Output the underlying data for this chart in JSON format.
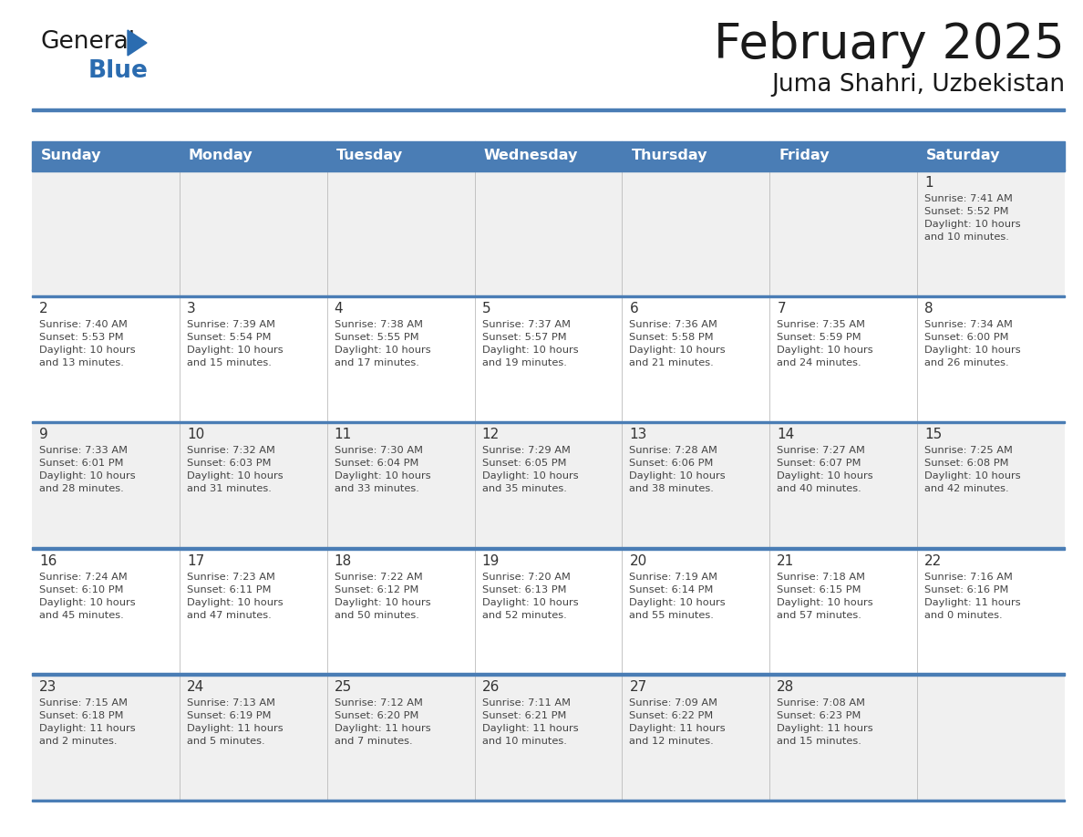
{
  "title": "February 2025",
  "subtitle": "Juma Shahri, Uzbekistan",
  "header_color": "#4a7db5",
  "header_text_color": "#FFFFFF",
  "cell_bg_even": "#f0f0f0",
  "cell_bg_odd": "#ffffff",
  "line_color": "#4a7db5",
  "text_color": "#333333",
  "logo_general_color": "#1a1a1a",
  "logo_blue_color": "#2b6cb0",
  "triangle_color": "#2b6cb0",
  "days_of_week": [
    "Sunday",
    "Monday",
    "Tuesday",
    "Wednesday",
    "Thursday",
    "Friday",
    "Saturday"
  ],
  "weeks": [
    [
      {
        "day": null,
        "info": null
      },
      {
        "day": null,
        "info": null
      },
      {
        "day": null,
        "info": null
      },
      {
        "day": null,
        "info": null
      },
      {
        "day": null,
        "info": null
      },
      {
        "day": null,
        "info": null
      },
      {
        "day": "1",
        "info": "Sunrise: 7:41 AM\nSunset: 5:52 PM\nDaylight: 10 hours\nand 10 minutes."
      }
    ],
    [
      {
        "day": "2",
        "info": "Sunrise: 7:40 AM\nSunset: 5:53 PM\nDaylight: 10 hours\nand 13 minutes."
      },
      {
        "day": "3",
        "info": "Sunrise: 7:39 AM\nSunset: 5:54 PM\nDaylight: 10 hours\nand 15 minutes."
      },
      {
        "day": "4",
        "info": "Sunrise: 7:38 AM\nSunset: 5:55 PM\nDaylight: 10 hours\nand 17 minutes."
      },
      {
        "day": "5",
        "info": "Sunrise: 7:37 AM\nSunset: 5:57 PM\nDaylight: 10 hours\nand 19 minutes."
      },
      {
        "day": "6",
        "info": "Sunrise: 7:36 AM\nSunset: 5:58 PM\nDaylight: 10 hours\nand 21 minutes."
      },
      {
        "day": "7",
        "info": "Sunrise: 7:35 AM\nSunset: 5:59 PM\nDaylight: 10 hours\nand 24 minutes."
      },
      {
        "day": "8",
        "info": "Sunrise: 7:34 AM\nSunset: 6:00 PM\nDaylight: 10 hours\nand 26 minutes."
      }
    ],
    [
      {
        "day": "9",
        "info": "Sunrise: 7:33 AM\nSunset: 6:01 PM\nDaylight: 10 hours\nand 28 minutes."
      },
      {
        "day": "10",
        "info": "Sunrise: 7:32 AM\nSunset: 6:03 PM\nDaylight: 10 hours\nand 31 minutes."
      },
      {
        "day": "11",
        "info": "Sunrise: 7:30 AM\nSunset: 6:04 PM\nDaylight: 10 hours\nand 33 minutes."
      },
      {
        "day": "12",
        "info": "Sunrise: 7:29 AM\nSunset: 6:05 PM\nDaylight: 10 hours\nand 35 minutes."
      },
      {
        "day": "13",
        "info": "Sunrise: 7:28 AM\nSunset: 6:06 PM\nDaylight: 10 hours\nand 38 minutes."
      },
      {
        "day": "14",
        "info": "Sunrise: 7:27 AM\nSunset: 6:07 PM\nDaylight: 10 hours\nand 40 minutes."
      },
      {
        "day": "15",
        "info": "Sunrise: 7:25 AM\nSunset: 6:08 PM\nDaylight: 10 hours\nand 42 minutes."
      }
    ],
    [
      {
        "day": "16",
        "info": "Sunrise: 7:24 AM\nSunset: 6:10 PM\nDaylight: 10 hours\nand 45 minutes."
      },
      {
        "day": "17",
        "info": "Sunrise: 7:23 AM\nSunset: 6:11 PM\nDaylight: 10 hours\nand 47 minutes."
      },
      {
        "day": "18",
        "info": "Sunrise: 7:22 AM\nSunset: 6:12 PM\nDaylight: 10 hours\nand 50 minutes."
      },
      {
        "day": "19",
        "info": "Sunrise: 7:20 AM\nSunset: 6:13 PM\nDaylight: 10 hours\nand 52 minutes."
      },
      {
        "day": "20",
        "info": "Sunrise: 7:19 AM\nSunset: 6:14 PM\nDaylight: 10 hours\nand 55 minutes."
      },
      {
        "day": "21",
        "info": "Sunrise: 7:18 AM\nSunset: 6:15 PM\nDaylight: 10 hours\nand 57 minutes."
      },
      {
        "day": "22",
        "info": "Sunrise: 7:16 AM\nSunset: 6:16 PM\nDaylight: 11 hours\nand 0 minutes."
      }
    ],
    [
      {
        "day": "23",
        "info": "Sunrise: 7:15 AM\nSunset: 6:18 PM\nDaylight: 11 hours\nand 2 minutes."
      },
      {
        "day": "24",
        "info": "Sunrise: 7:13 AM\nSunset: 6:19 PM\nDaylight: 11 hours\nand 5 minutes."
      },
      {
        "day": "25",
        "info": "Sunrise: 7:12 AM\nSunset: 6:20 PM\nDaylight: 11 hours\nand 7 minutes."
      },
      {
        "day": "26",
        "info": "Sunrise: 7:11 AM\nSunset: 6:21 PM\nDaylight: 11 hours\nand 10 minutes."
      },
      {
        "day": "27",
        "info": "Sunrise: 7:09 AM\nSunset: 6:22 PM\nDaylight: 11 hours\nand 12 minutes."
      },
      {
        "day": "28",
        "info": "Sunrise: 7:08 AM\nSunset: 6:23 PM\nDaylight: 11 hours\nand 15 minutes."
      },
      {
        "day": null,
        "info": null
      }
    ]
  ]
}
